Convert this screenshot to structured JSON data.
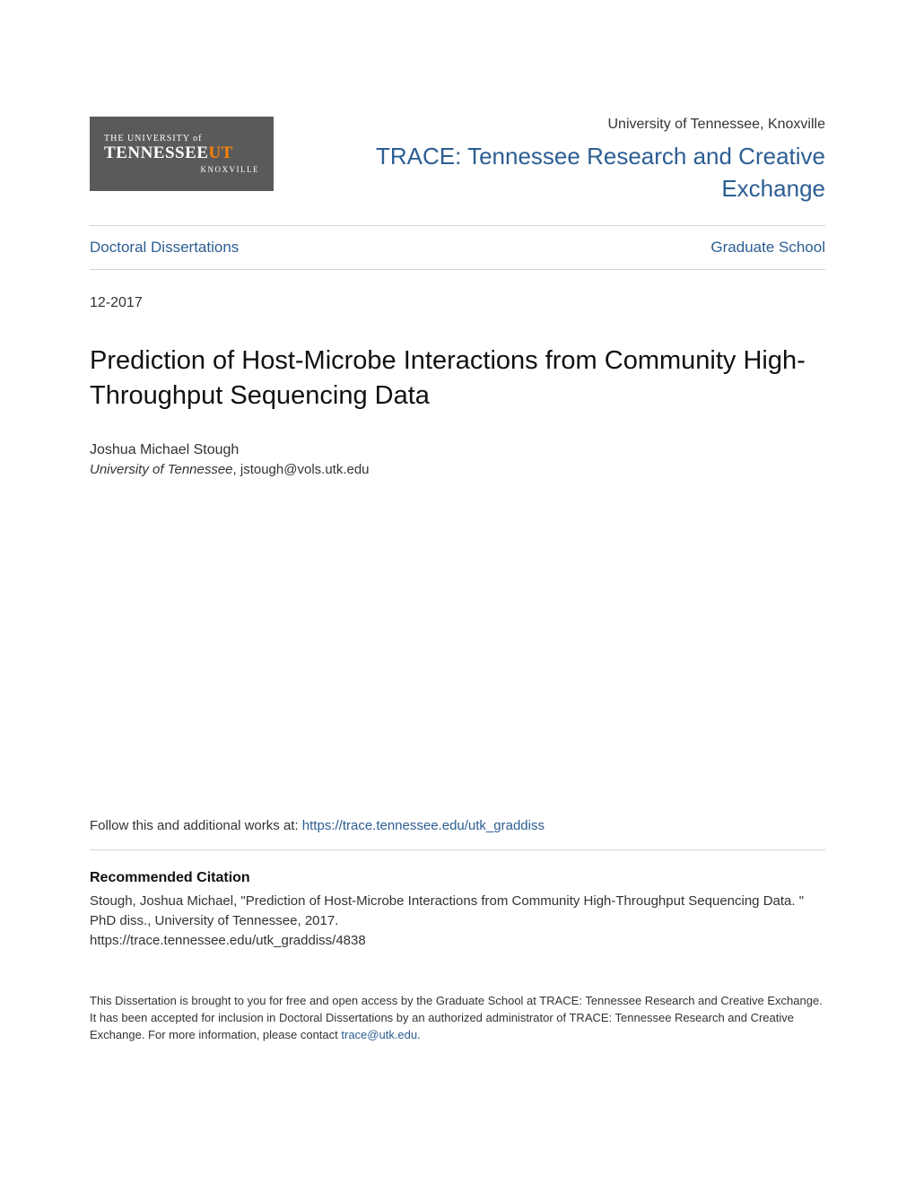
{
  "logo": {
    "line1": "THE UNIVERSITY of",
    "line2_a": "TENNESSEE",
    "line2_b": "UT",
    "line3": "KNOXVILLE",
    "bg_color": "#5a5a5a",
    "text_color": "#ffffff",
    "accent_color": "#ff8200"
  },
  "header": {
    "institution": "University of Tennessee, Knoxville",
    "repository_name": "TRACE: Tennessee Research and Creative Exchange"
  },
  "nav": {
    "left_link": "Doctoral Dissertations",
    "right_link": "Graduate School"
  },
  "date": "12-2017",
  "title": "Prediction of Host-Microbe Interactions from Community High-Throughput Sequencing Data",
  "author": {
    "name": "Joshua Michael Stough",
    "affiliation": "University of Tennessee",
    "email": "jstough@vols.utk.edu"
  },
  "follow": {
    "prefix": "Follow this and additional works at: ",
    "url": "https://trace.tennessee.edu/utk_graddiss"
  },
  "citation": {
    "heading": "Recommended Citation",
    "text": "Stough, Joshua Michael, \"Prediction of Host-Microbe Interactions from Community High-Throughput Sequencing Data. \" PhD diss., University of Tennessee, 2017.",
    "url": "https://trace.tennessee.edu/utk_graddiss/4838"
  },
  "disclaimer": {
    "text": "This Dissertation is brought to you for free and open access by the Graduate School at TRACE: Tennessee Research and Creative Exchange. It has been accepted for inclusion in Doctoral Dissertations by an authorized administrator of TRACE: Tennessee Research and Creative Exchange. For more information, please contact ",
    "contact": "trace@utk.edu",
    "suffix": "."
  },
  "colors": {
    "link_color": "#2c5e93",
    "text_color": "#333333",
    "border_color": "#d5d5d5",
    "background": "#ffffff"
  },
  "typography": {
    "body_font": "Arial",
    "title_fontsize": 29,
    "repo_fontsize": 26,
    "nav_fontsize": 17,
    "body_fontsize": 15,
    "disclaimer_fontsize": 13
  }
}
